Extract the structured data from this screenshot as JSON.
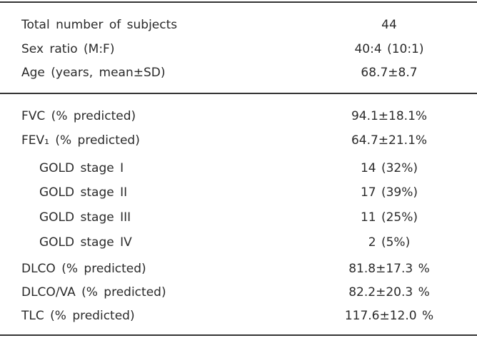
{
  "table": {
    "sections": [
      {
        "rows": [
          [
            "Total number of subjects",
            "44"
          ],
          [
            "Sex ratio (M:F)",
            "40:4 (10:1)"
          ],
          [
            "Age (years, mean±SD)",
            "68.7±8.7"
          ]
        ]
      },
      {
        "rows": [
          [
            "FVC (% predicted)",
            "94.1±18.1%"
          ],
          [
            "FEV₁ (% predicted)",
            "64.7±21.1%"
          ],
          [
            "GOLD stage I",
            "14 (32%)"
          ],
          [
            "GOLD stage II",
            "17 (39%)"
          ],
          [
            "GOLD stage III",
            "11 (25%)"
          ],
          [
            "GOLD stage IV",
            "2 (5%)"
          ],
          [
            "DLCO (% predicted)",
            "81.8±17.3 %"
          ],
          [
            "DLCO/VA (% predicted)",
            "82.2±20.3 %"
          ],
          [
            "TLC (% predicted)",
            "117.6±12.0 %"
          ]
        ]
      }
    ]
  }
}
